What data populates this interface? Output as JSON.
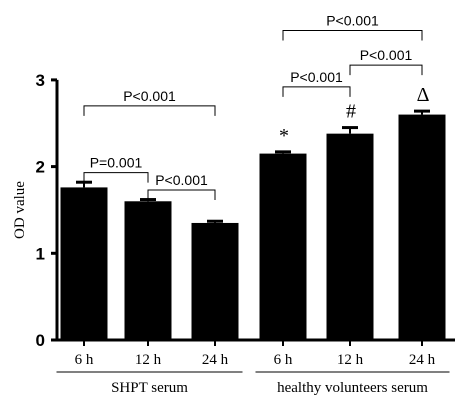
{
  "chart_data": {
    "type": "bar",
    "ylabel": "OD value",
    "ylim": [
      0,
      3
    ],
    "yticks": [
      "0",
      "1",
      "2",
      "3"
    ],
    "categories": [
      "6 h",
      "12 h",
      "24 h",
      "6 h",
      "12 h",
      "24 h"
    ],
    "values": [
      1.76,
      1.6,
      1.35,
      2.15,
      2.38,
      2.6
    ],
    "errors": [
      0.06,
      0.02,
      0.02,
      0.02,
      0.07,
      0.04
    ],
    "bar_color": "#000000",
    "groups": [
      {
        "label": "SHPT serum",
        "members": [
          0,
          1,
          2
        ]
      },
      {
        "label": "healthy  volunteers  serum",
        "members": [
          3,
          4,
          5
        ]
      }
    ],
    "markers": [
      "",
      "",
      "",
      "*",
      "#",
      "Δ"
    ],
    "comparisons": [
      {
        "from": 0,
        "to": 1,
        "label": "P=0.001",
        "y": 1.93
      },
      {
        "from": 1,
        "to": 2,
        "label": "P<0.001",
        "y": 1.73
      },
      {
        "from": 0,
        "to": 2,
        "label": "P<0.001",
        "y": 2.7
      },
      {
        "from": 3,
        "to": 4,
        "label": "P<0.001",
        "y": 2.92
      },
      {
        "from": 4,
        "to": 5,
        "label": "P<0.001",
        "y": 3.17
      },
      {
        "from": 3,
        "to": 5,
        "label": "P<0.001",
        "y": 3.57
      }
    ]
  }
}
